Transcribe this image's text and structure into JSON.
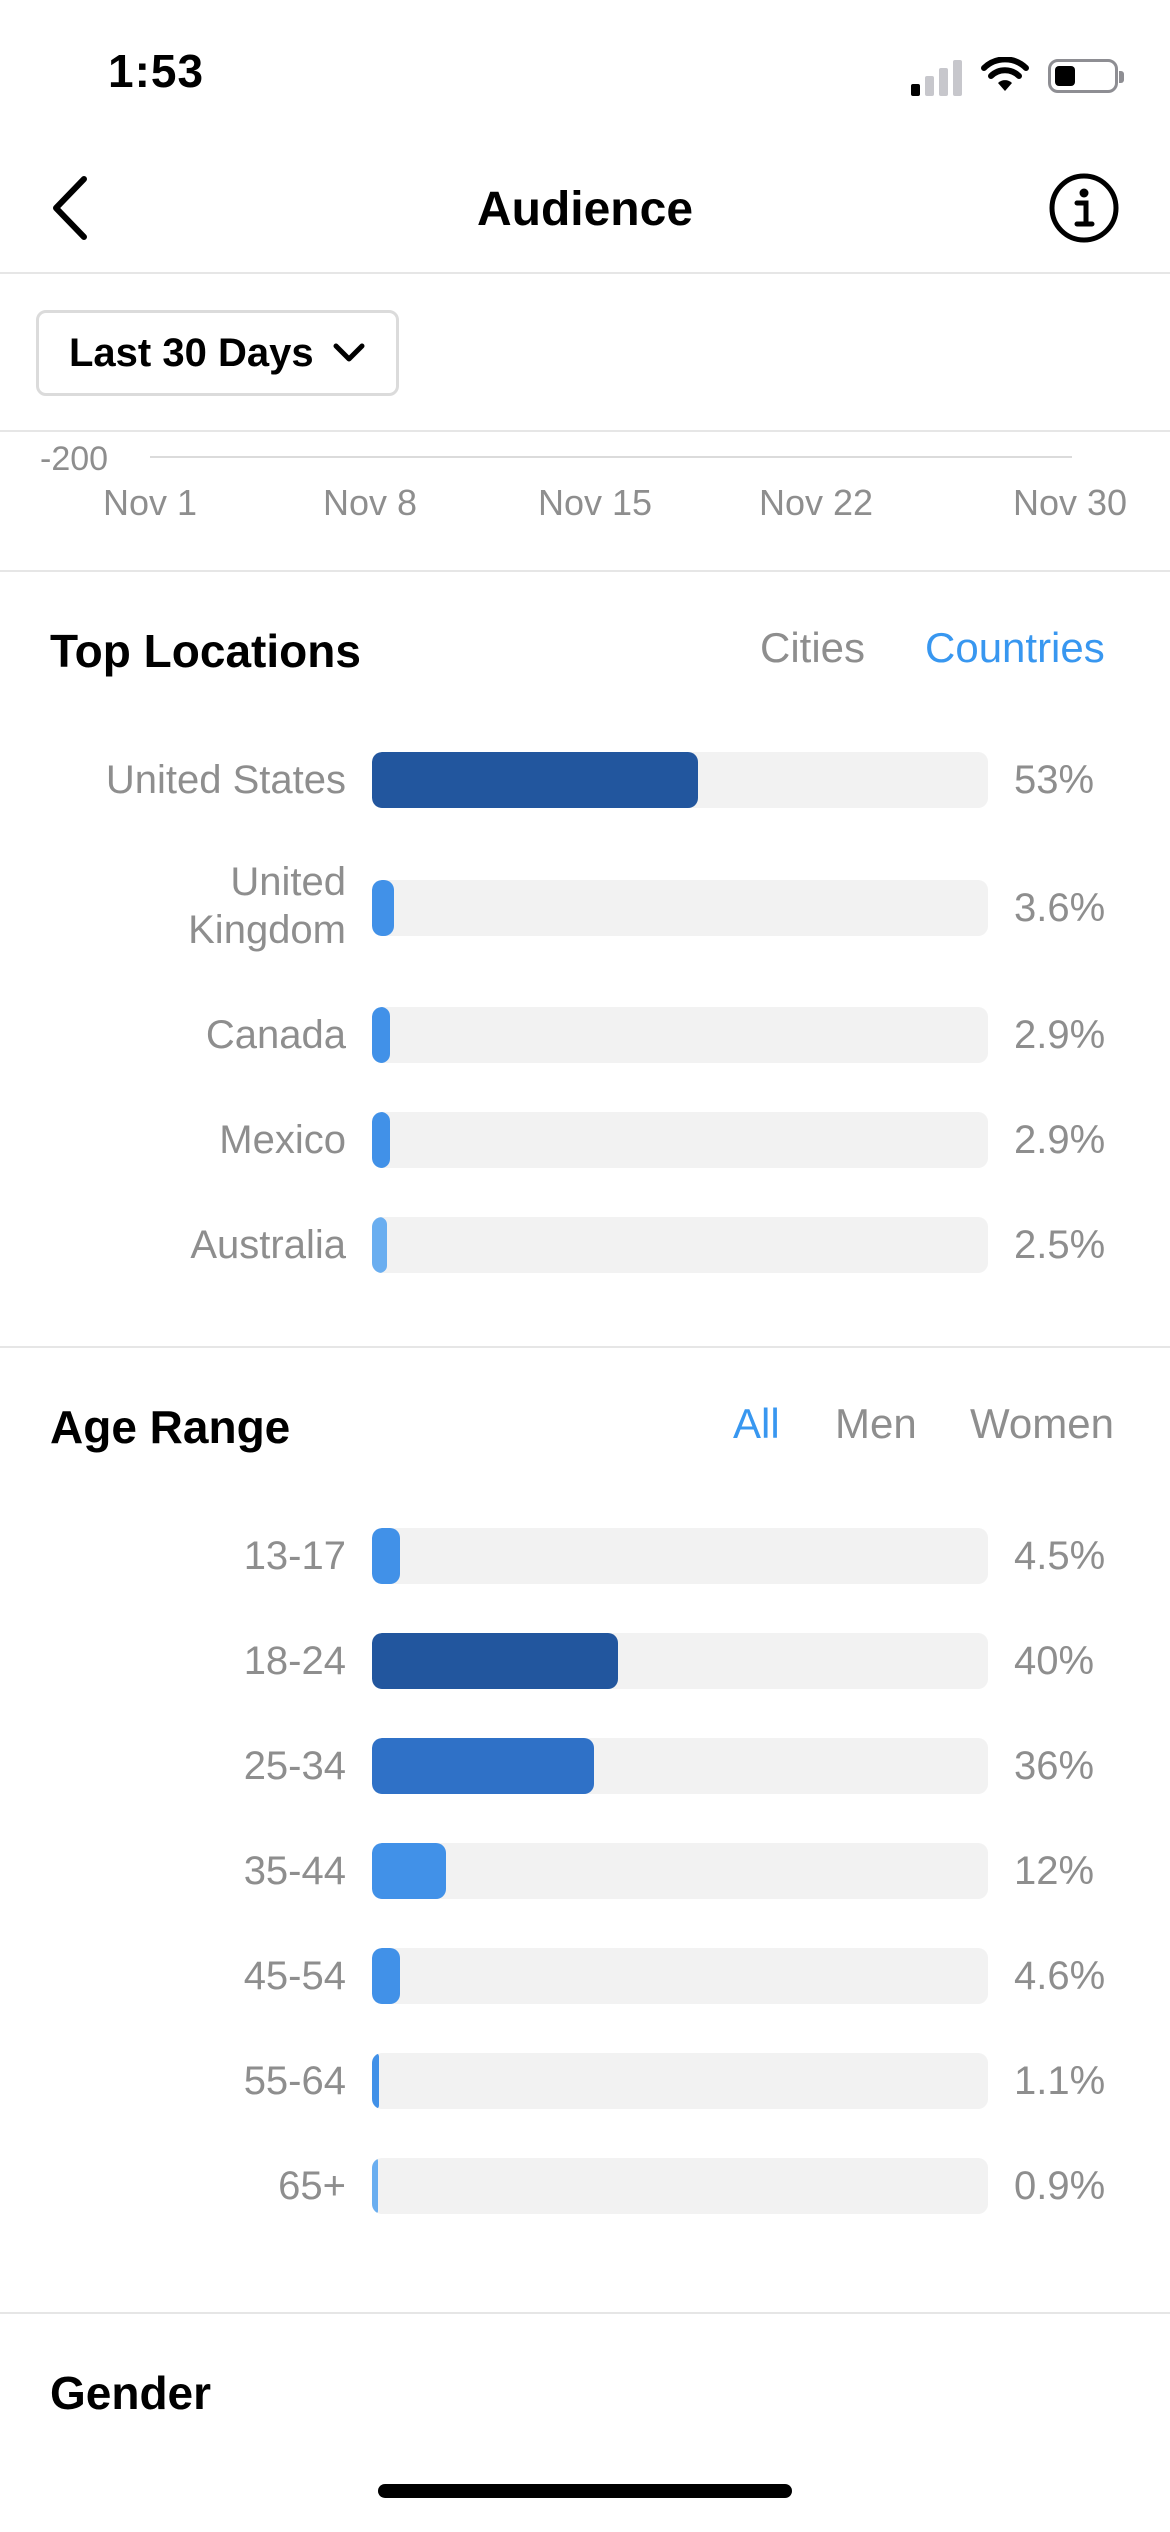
{
  "status_bar": {
    "time": "1:53",
    "icons": [
      "cellular-signal-icon",
      "wifi-icon",
      "battery-icon"
    ]
  },
  "nav": {
    "title": "Audience",
    "back_icon": "chevron-left-icon",
    "info_icon": "info-icon"
  },
  "date_range": {
    "label": "Last 30 Days",
    "icon": "chevron-down-icon"
  },
  "activity_chart": {
    "axis_value": "-200",
    "x_ticks": [
      "Nov 1",
      "Nov 8",
      "Nov 15",
      "Nov 22",
      "Nov 30"
    ]
  },
  "top_locations": {
    "title": "Top Locations",
    "tabs": [
      {
        "label": "Cities",
        "active": false
      },
      {
        "label": "Countries",
        "active": true
      }
    ],
    "rows": [
      {
        "label": "United States",
        "value": "53%",
        "fraction": 0.53,
        "color": "#22569e"
      },
      {
        "label": "United Kingdom",
        "value": "3.6%",
        "fraction": 0.036,
        "color": "#4191e8"
      },
      {
        "label": "Canada",
        "value": "2.9%",
        "fraction": 0.029,
        "color": "#4191e8"
      },
      {
        "label": "Mexico",
        "value": "2.9%",
        "fraction": 0.029,
        "color": "#4191e8"
      },
      {
        "label": "Australia",
        "value": "2.5%",
        "fraction": 0.025,
        "color": "#6aaef0"
      }
    ]
  },
  "age_range": {
    "title": "Age Range",
    "tabs": [
      {
        "label": "All",
        "active": true
      },
      {
        "label": "Men",
        "active": false
      },
      {
        "label": "Women",
        "active": false
      }
    ],
    "rows": [
      {
        "label": "13-17",
        "value": "4.5%",
        "fraction": 0.045,
        "color": "#4191e8"
      },
      {
        "label": "18-24",
        "value": "40%",
        "fraction": 0.4,
        "color": "#22569e"
      },
      {
        "label": "25-34",
        "value": "36%",
        "fraction": 0.36,
        "color": "#2f71c7"
      },
      {
        "label": "35-44",
        "value": "12%",
        "fraction": 0.12,
        "color": "#4191e8"
      },
      {
        "label": "45-54",
        "value": "4.6%",
        "fraction": 0.046,
        "color": "#4191e8"
      },
      {
        "label": "55-64",
        "value": "1.1%",
        "fraction": 0.011,
        "color": "#4191e8"
      },
      {
        "label": "65+",
        "value": "0.9%",
        "fraction": 0.009,
        "color": "#6aaef0"
      }
    ]
  },
  "gender": {
    "title": "Gender"
  },
  "colors": {
    "accent": "#3897f0",
    "secondary_text": "#8e8e8e",
    "track": "#f2f2f2",
    "divider": "#e6e6e6"
  }
}
